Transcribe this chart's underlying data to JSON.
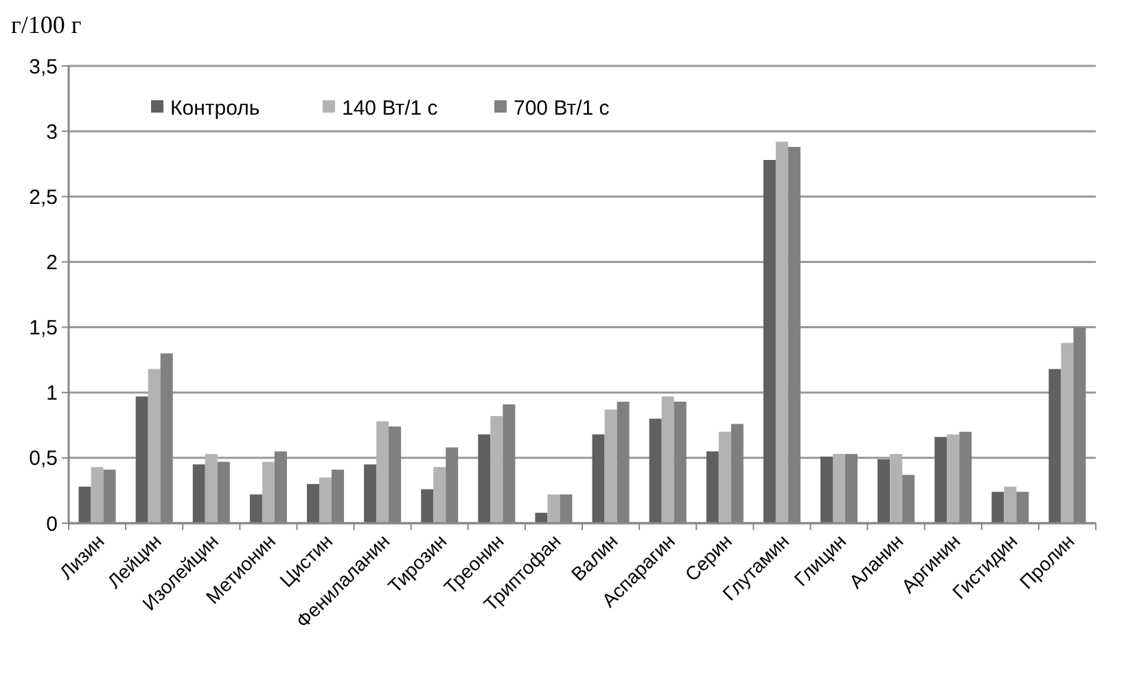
{
  "chart_data": {
    "type": "bar",
    "ylabel": "г/100 г",
    "categories": [
      "Лизин",
      "Лейцин",
      "Изолейцин",
      "Метионин",
      "Цистин",
      "Фенилаланин",
      "Тирозин",
      "Треонин",
      "Триптофан",
      "Валин",
      "Аспарагин",
      "Серин",
      "Глутамин",
      "Глицин",
      "Аланин",
      "Аргинин",
      "Гистидин",
      "Пролин"
    ],
    "series": [
      {
        "name": "Контроль",
        "color": "#606060",
        "values": [
          0.28,
          0.97,
          0.45,
          0.22,
          0.3,
          0.45,
          0.26,
          0.68,
          0.08,
          0.68,
          0.8,
          0.55,
          2.78,
          0.51,
          0.49,
          0.66,
          0.24,
          1.18
        ]
      },
      {
        "name": "140 Вт/1 с",
        "color": "#b3b3b3",
        "values": [
          0.43,
          1.18,
          0.53,
          0.47,
          0.35,
          0.78,
          0.43,
          0.82,
          0.22,
          0.87,
          0.97,
          0.7,
          2.92,
          0.53,
          0.53,
          0.68,
          0.28,
          1.38
        ]
      },
      {
        "name": "700 Вт/1 с",
        "color": "#808080",
        "values": [
          0.41,
          1.3,
          0.47,
          0.55,
          0.41,
          0.74,
          0.58,
          0.91,
          0.22,
          0.93,
          0.93,
          0.76,
          2.88,
          0.53,
          0.37,
          0.7,
          0.24,
          1.5
        ]
      }
    ],
    "ylim": [
      0,
      3.5
    ],
    "yticks": [
      0,
      {
        "value": 0.5,
        "label": "0,5"
      },
      1,
      {
        "value": 1.5,
        "label": "1,5"
      },
      2,
      {
        "value": 2.5,
        "label": "2,5"
      },
      3,
      {
        "value": 3.5,
        "label": "3,5"
      }
    ],
    "grid": "y",
    "legend": "top left"
  }
}
